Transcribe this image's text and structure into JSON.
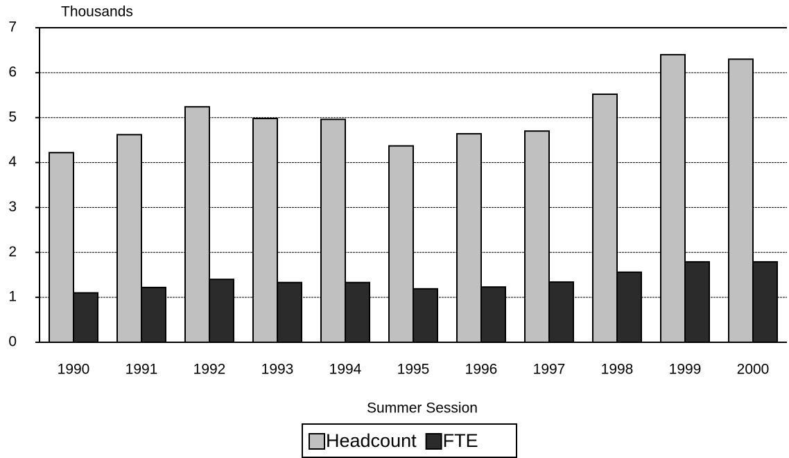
{
  "chart_data": {
    "type": "bar",
    "y_unit_label": "Thousands",
    "x_label": "Summer Session",
    "categories": [
      "1990",
      "1991",
      "1992",
      "1993",
      "1994",
      "1995",
      "1996",
      "1997",
      "1998",
      "1999",
      "2000"
    ],
    "series": [
      {
        "name": "Headcount",
        "color": "#c0c0c0",
        "values": [
          4.22,
          4.62,
          5.24,
          4.98,
          4.96,
          4.37,
          4.64,
          4.7,
          5.52,
          6.4,
          6.3
        ]
      },
      {
        "name": "FTE",
        "color": "#2b2b2b",
        "values": [
          1.1,
          1.22,
          1.4,
          1.33,
          1.33,
          1.19,
          1.23,
          1.34,
          1.56,
          1.79,
          1.79
        ]
      }
    ],
    "ylim": [
      0,
      7
    ],
    "yticks": [
      0,
      1,
      2,
      3,
      4,
      5,
      6,
      7
    ],
    "grid": true
  }
}
